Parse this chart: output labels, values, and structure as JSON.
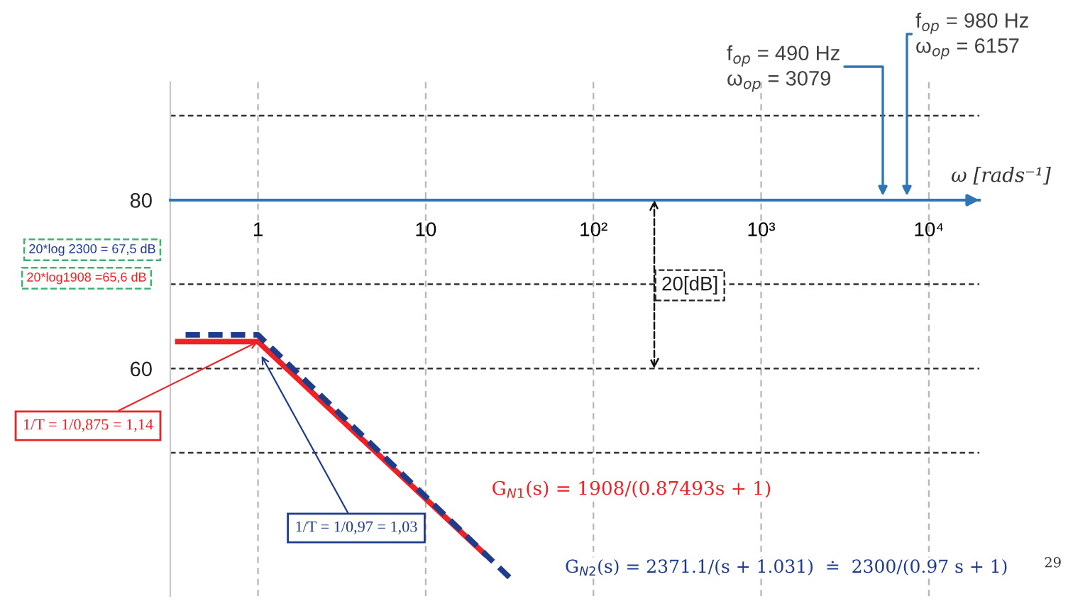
{
  "chart_data": {
    "type": "line",
    "log": "x",
    "xlabel": "ω [rads⁻¹]",
    "xlim": [
      0.3,
      20000
    ],
    "xticks": [
      1,
      10,
      {
        "value": 100,
        "label": "10²"
      },
      {
        "value": 1000,
        "label": "10³"
      },
      {
        "value": 10000,
        "label": "10⁴"
      }
    ],
    "ylim": [
      33,
      94
    ],
    "yticks": [
      {
        "value": 50,
        "label": null
      },
      60,
      {
        "value": 70,
        "label": null
      },
      80,
      {
        "value": 90,
        "label": null
      }
    ],
    "grid": true,
    "series": [
      {
        "color": "#ec2227",
        "line_style": "solid",
        "x": [
          0.32,
          1,
          23
        ],
        "values": [
          63.2,
          63.2,
          37.8
        ]
      },
      {
        "color": "#1f3c8c",
        "line_style": "dashed",
        "x": [
          0.37,
          1,
          34
        ],
        "values": [
          64,
          64,
          34.6
        ]
      }
    ],
    "annotations": [
      "20*log 2300 = 67,5 dB",
      "20*log1908 =65,6 dB",
      {
        "text": "1/T = 1/0,875 = 1,14",
        "x": 1,
        "y": 63.2
      },
      {
        "text": "1/T = 1/0,97 = 1,03",
        "x": 1.05,
        "y": 61.5
      },
      "20[dB]",
      "f$_{op}$ = 490 Hz\nω$_{op}$ = 3079",
      "f$_{op}$ = 980 Hz\nω$_{op}$ = 6157",
      "G$_{N1}$(s) = 1908/(0.87493s + 1)",
      "G$_{N2}$(s) = 2371.1/(s + 1.031)  ≐  2300/(0.97 s + 1)",
      "29"
    ]
  }
}
